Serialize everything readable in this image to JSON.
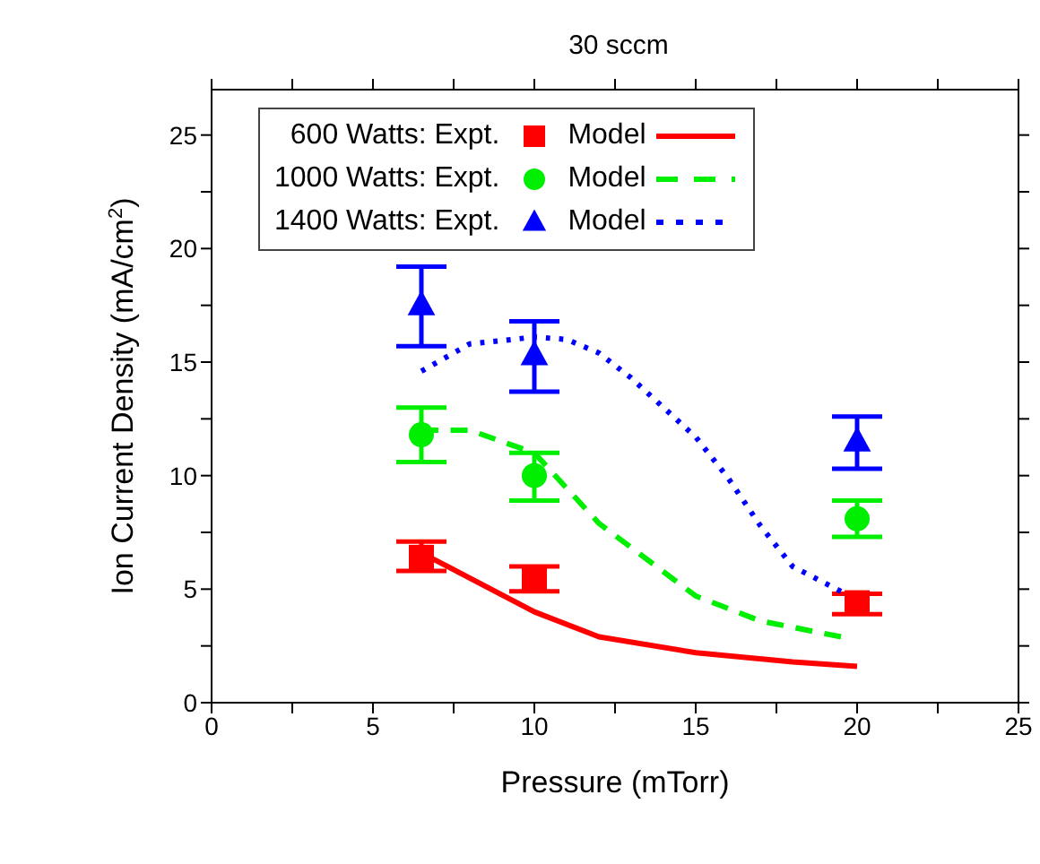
{
  "chart_data": {
    "type": "scatter",
    "title": "30 sccm",
    "xlabel": "Pressure (mTorr)",
    "ylabel": "Ion Current Density (mA/cm$^{2}$)",
    "xlim": [
      0,
      25
    ],
    "xticks": [
      0,
      {
        "value": 2.5,
        "label": null
      },
      5,
      {
        "value": 7.5,
        "label": null
      },
      10,
      {
        "value": 12.5,
        "label": null
      },
      15,
      {
        "value": 17.5,
        "label": null
      },
      20,
      {
        "value": 22.5,
        "label": null
      },
      25
    ],
    "ylim": [
      0,
      27
    ],
    "yticks": [
      0,
      {
        "value": 2.5,
        "label": null
      },
      5,
      {
        "value": 7.5,
        "label": null
      },
      10,
      {
        "value": 12.5,
        "label": null
      },
      15,
      {
        "value": 17.5,
        "label": null
      },
      20,
      {
        "value": 22.5,
        "label": null
      },
      25
    ],
    "grid": false,
    "legend": "top left",
    "series": [
      {
        "name": "600 Watts: Expt.",
        "marker": "square",
        "color": "#ff0000",
        "x": [
          6.5,
          10,
          20
        ],
        "values": [
          6.4,
          5.5,
          4.4
        ],
        "errors": [
          [
            5.8,
            7.1
          ],
          [
            4.9,
            6.0
          ],
          [
            3.9,
            4.8
          ]
        ]
      },
      {
        "name": "Model",
        "type": "line",
        "line_style": "solid",
        "marker": "none",
        "color": "#ff0000",
        "x": [
          6.5,
          10,
          12,
          15,
          18,
          20
        ],
        "values": [
          6.6,
          4.0,
          2.9,
          2.2,
          1.8,
          1.6
        ]
      },
      {
        "name": "1000 Watts: Expt.",
        "marker": "circle",
        "color": "#00ee00",
        "x": [
          6.5,
          10,
          20
        ],
        "values": [
          11.8,
          10.0,
          8.1
        ],
        "errors": [
          [
            10.6,
            13.0
          ],
          [
            8.9,
            11.0
          ],
          [
            7.3,
            8.9
          ]
        ]
      },
      {
        "name": "Model",
        "type": "line",
        "line_style": "dashed",
        "marker": "none",
        "color": "#00ee00",
        "x": [
          6.5,
          8,
          10,
          12,
          15,
          17,
          19.5
        ],
        "values": [
          12.0,
          12.0,
          11.0,
          7.9,
          4.7,
          3.6,
          2.9
        ]
      },
      {
        "name": "1400 Watts: Expt.",
        "marker": "triangle",
        "color": "#0000ff",
        "x": [
          6.5,
          10,
          20
        ],
        "values": [
          17.5,
          15.3,
          11.5
        ],
        "errors": [
          [
            15.7,
            19.2
          ],
          [
            13.7,
            16.8
          ],
          [
            10.3,
            12.6
          ]
        ]
      },
      {
        "name": "Model",
        "type": "line",
        "line_style": "dotted",
        "marker": "none",
        "color": "#0000ff",
        "x": [
          6.5,
          8,
          10,
          11,
          12,
          13,
          14,
          15,
          16,
          17,
          18,
          19.5
        ],
        "values": [
          14.6,
          15.8,
          16.1,
          16.0,
          15.4,
          14.3,
          13.0,
          11.7,
          9.9,
          7.8,
          6.0,
          4.9
        ]
      }
    ]
  }
}
